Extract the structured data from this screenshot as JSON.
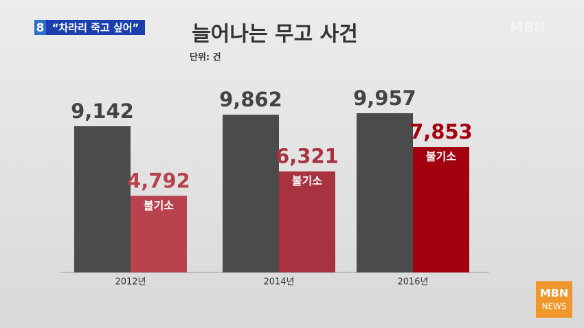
{
  "chart_data": {
    "type": "bar",
    "title": "늘어나는 무고 사건",
    "subtitle": "단위: 건",
    "categories": [
      "2012년",
      "2014년",
      "2016년"
    ],
    "series": [
      {
        "color": "#4b4b4b",
        "values": [
          9142,
          9862,
          9957
        ],
        "value_labels": [
          "9,142",
          "9,862",
          "9,957"
        ]
      },
      {
        "name": "불기소",
        "colors": [
          "#b8434f",
          "#a8323f",
          "#a3000f"
        ],
        "values": [
          4792,
          6321,
          7853
        ],
        "value_labels": [
          "4,792",
          "6,321",
          "7,853"
        ]
      }
    ]
  },
  "broadcast": {
    "channel": "8",
    "headline": "“차라리 죽고 싶어”",
    "logo": "MBN",
    "corner_logo": "MBN",
    "corner_logo_sub": "NEWS"
  }
}
